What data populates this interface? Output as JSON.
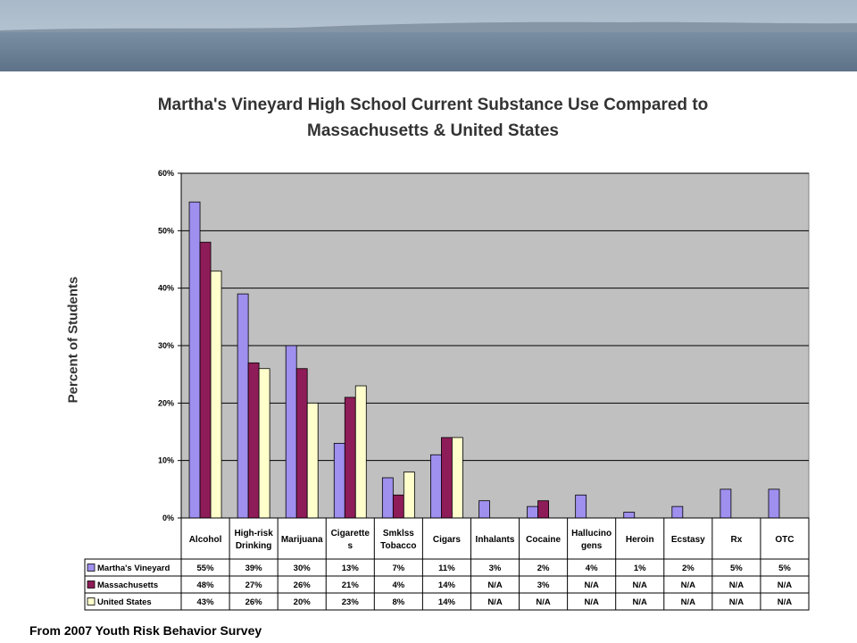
{
  "chart_data": {
    "type": "bar",
    "title_line1": "Martha's Vineyard High School Current Substance Use Compared to",
    "title_line2": "Massachusetts & United States",
    "ylabel": "Percent of Students",
    "ylim": [
      0,
      60
    ],
    "yticks": [
      "0%",
      "10%",
      "20%",
      "30%",
      "40%",
      "50%",
      "60%"
    ],
    "grid": true,
    "categories": [
      [
        "Alcohol"
      ],
      [
        "High-risk",
        "Drinking"
      ],
      [
        "Marijuana"
      ],
      [
        "Cigarette",
        "s"
      ],
      [
        "Smklss",
        "Tobacco"
      ],
      [
        "Cigars"
      ],
      [
        "Inhalants"
      ],
      [
        "Cocaine"
      ],
      [
        "Hallucino",
        "gens"
      ],
      [
        "Heroin"
      ],
      [
        "Ecstasy"
      ],
      [
        "Rx"
      ],
      [
        "OTC"
      ]
    ],
    "series": [
      {
        "name": "Martha's Vineyard",
        "color": "#9f8fef",
        "values": [
          55,
          39,
          30,
          13,
          7,
          11,
          3,
          2,
          4,
          1,
          2,
          5,
          5
        ],
        "table": [
          "55%",
          "39%",
          "30%",
          "13%",
          "7%",
          "11%",
          "3%",
          "2%",
          "4%",
          "1%",
          "2%",
          "5%",
          "5%"
        ]
      },
      {
        "name": "Massachusetts",
        "color": "#8e1c58",
        "values": [
          48,
          27,
          26,
          21,
          4,
          14,
          null,
          3,
          null,
          null,
          null,
          null,
          null
        ],
        "table": [
          "48%",
          "27%",
          "26%",
          "21%",
          "4%",
          "14%",
          "N/A",
          "3%",
          "N/A",
          "N/A",
          "N/A",
          "N/A",
          "N/A"
        ]
      },
      {
        "name": "United States",
        "color": "#ffffcc",
        "values": [
          43,
          26,
          20,
          23,
          8,
          14,
          null,
          null,
          null,
          null,
          null,
          null,
          null
        ],
        "table": [
          "43%",
          "26%",
          "20%",
          "23%",
          "8%",
          "14%",
          "N/A",
          "N/A",
          "N/A",
          "N/A",
          "N/A",
          "N/A",
          "N/A"
        ]
      }
    ]
  },
  "footer": "From 2007 Youth Risk Behavior Survey"
}
